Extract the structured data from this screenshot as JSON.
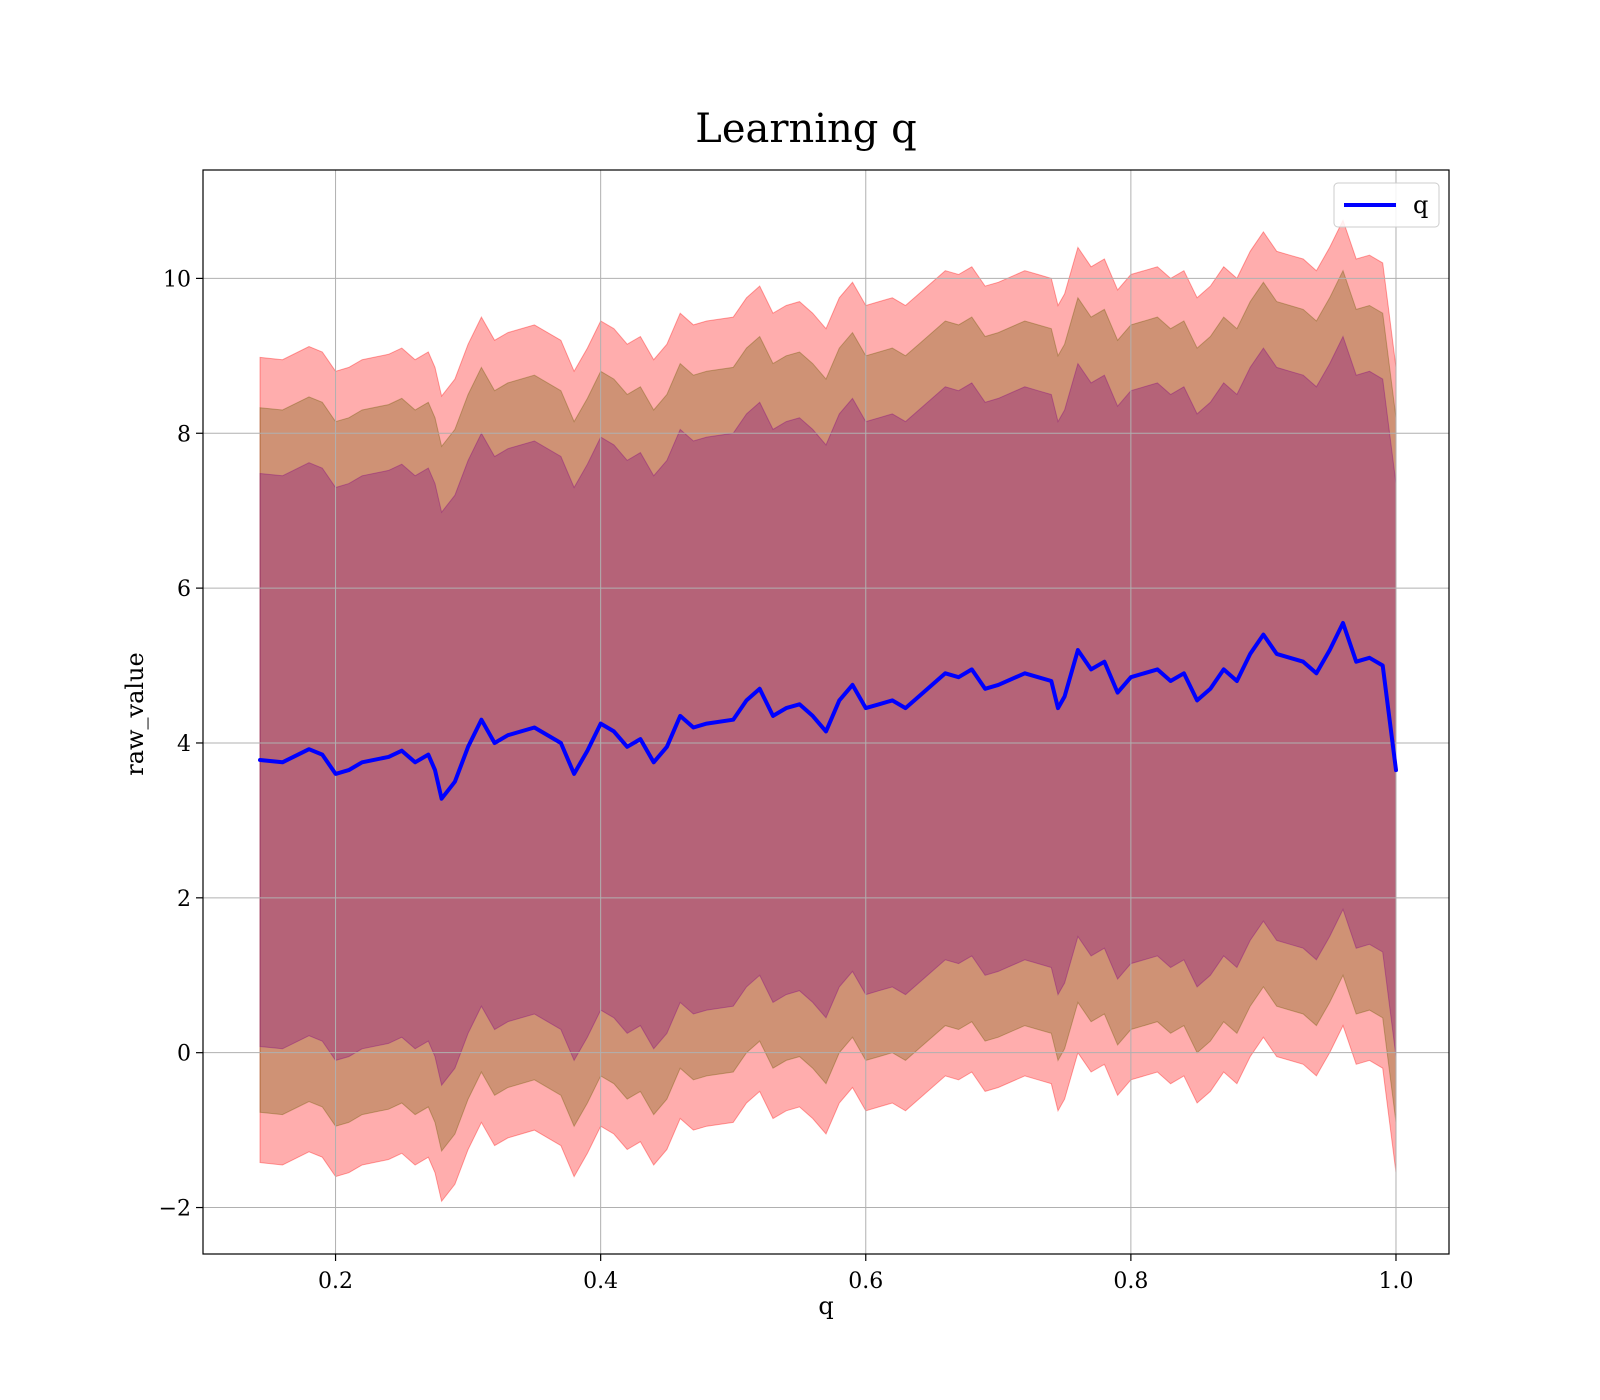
{
  "chart_data": {
    "type": "area",
    "title": "Learning q",
    "xlabel": "q",
    "ylabel": "raw_value",
    "xlim": [
      0.1,
      1.04
    ],
    "ylim": [
      -2.6,
      11.4
    ],
    "xticks": [
      0.2,
      0.4,
      0.6,
      0.8,
      1.0
    ],
    "xtick_labels": [
      "0.2",
      "0.4",
      "0.6",
      "0.8",
      "1.0"
    ],
    "yticks": [
      -2,
      0,
      2,
      4,
      6,
      8,
      10
    ],
    "ytick_labels": [
      "−2",
      "0",
      "2",
      "4",
      "6",
      "8",
      "10"
    ],
    "grid": true,
    "legend_position": "top-right",
    "legend": [
      {
        "label": "q",
        "color": "#0000ff"
      }
    ],
    "series": [
      {
        "name": "q",
        "color": "#0000ff",
        "x": [
          0.143,
          0.16,
          0.18,
          0.19,
          0.2,
          0.21,
          0.22,
          0.24,
          0.25,
          0.26,
          0.27,
          0.275,
          0.28,
          0.29,
          0.3,
          0.31,
          0.32,
          0.33,
          0.35,
          0.37,
          0.38,
          0.39,
          0.4,
          0.41,
          0.42,
          0.43,
          0.44,
          0.45,
          0.46,
          0.47,
          0.48,
          0.5,
          0.51,
          0.52,
          0.53,
          0.54,
          0.55,
          0.56,
          0.57,
          0.58,
          0.59,
          0.6,
          0.61,
          0.62,
          0.63,
          0.64,
          0.66,
          0.67,
          0.68,
          0.69,
          0.7,
          0.72,
          0.73,
          0.74,
          0.745,
          0.75,
          0.76,
          0.77,
          0.78,
          0.79,
          0.8,
          0.82,
          0.83,
          0.84,
          0.85,
          0.86,
          0.87,
          0.88,
          0.89,
          0.9,
          0.91,
          0.92,
          0.93,
          0.94,
          0.95,
          0.96,
          0.97,
          0.98,
          0.99,
          1.0
        ],
        "values": [
          3.78,
          3.75,
          3.92,
          3.85,
          3.6,
          3.65,
          3.75,
          3.82,
          3.9,
          3.75,
          3.85,
          3.65,
          3.28,
          3.5,
          3.95,
          4.3,
          4.0,
          4.1,
          4.2,
          4.0,
          3.6,
          3.9,
          4.25,
          4.15,
          3.95,
          4.05,
          3.75,
          3.95,
          4.35,
          4.2,
          4.25,
          4.3,
          4.55,
          4.7,
          4.35,
          4.45,
          4.5,
          4.35,
          4.15,
          4.55,
          4.75,
          4.45,
          4.5,
          4.55,
          4.45,
          4.6,
          4.9,
          4.85,
          4.95,
          4.7,
          4.75,
          4.9,
          4.85,
          4.8,
          4.45,
          4.6,
          5.2,
          4.95,
          5.05,
          4.65,
          4.85,
          4.95,
          4.8,
          4.9,
          4.55,
          4.7,
          4.95,
          4.8,
          5.15,
          5.4,
          5.15,
          5.1,
          5.05,
          4.9,
          5.2,
          5.55,
          5.05,
          5.1,
          5.0,
          3.65
        ]
      }
    ],
    "bands": [
      {
        "color": "#ff0000",
        "alpha": 0.32,
        "lower_offset": -5.2,
        "upper_offset": 5.2
      },
      {
        "color": "#6b5a00",
        "alpha": 0.32,
        "lower_offset": -4.55,
        "upper_offset": 4.55
      },
      {
        "color": "#800080",
        "alpha": 0.32,
        "lower_offset": -3.7,
        "upper_offset": 3.7
      }
    ]
  }
}
